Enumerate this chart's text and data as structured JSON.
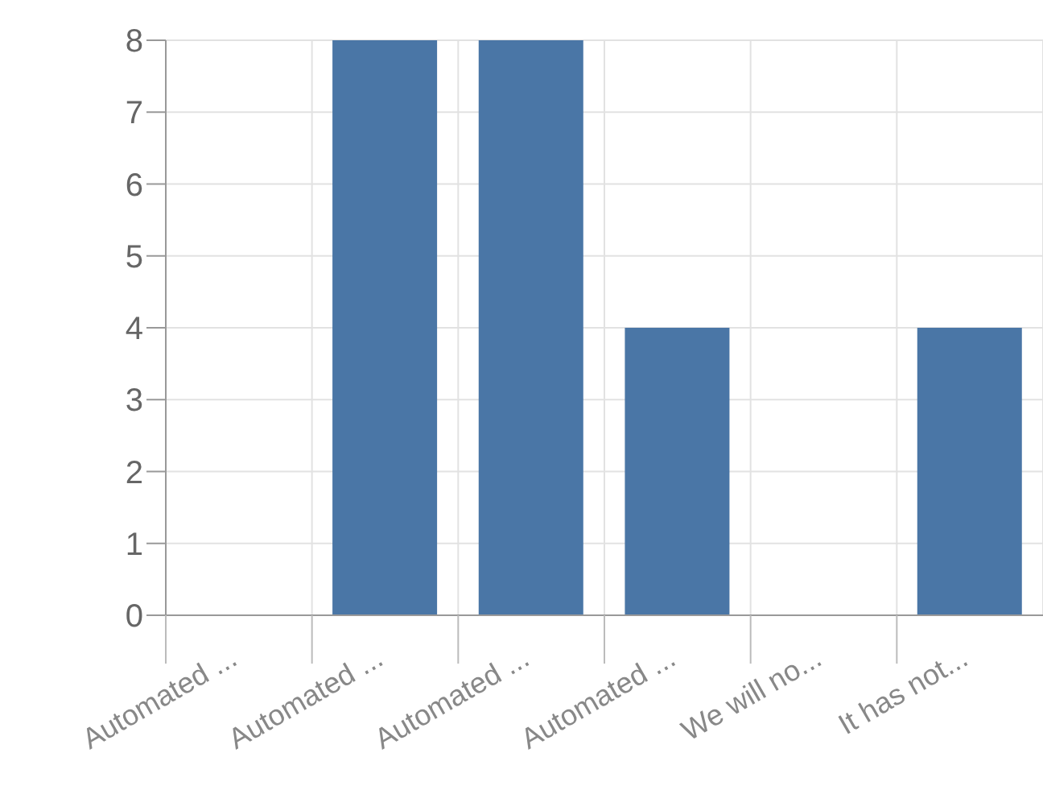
{
  "chart_data": {
    "type": "bar",
    "categories": [
      "Automated ...",
      "Automated ...",
      "Automated ...",
      "Automated ...",
      "We will no...",
      "It has not..."
    ],
    "values": [
      0,
      8,
      8,
      4,
      0,
      4
    ],
    "color": "#4a76a6",
    "ylim": [
      0,
      8
    ],
    "yticks": [
      0,
      1,
      2,
      3,
      4,
      5,
      6,
      7,
      8
    ],
    "grid": true
  }
}
